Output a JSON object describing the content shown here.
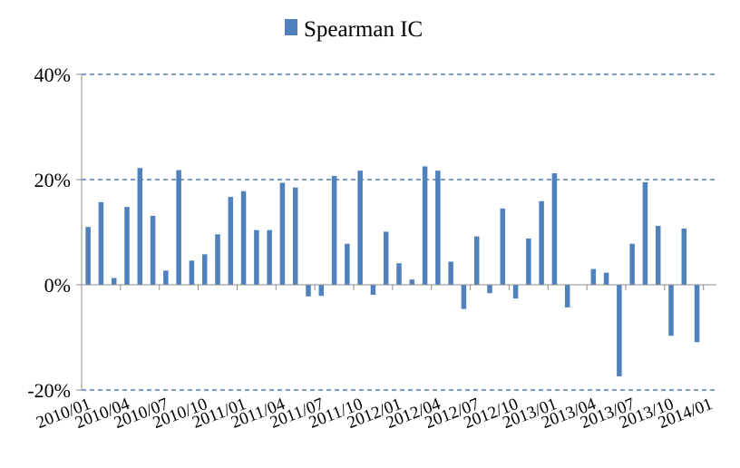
{
  "chart_data": {
    "type": "bar",
    "legend": {
      "label": "Spearman IC",
      "position": "top",
      "color": "#4f81bd"
    },
    "y_ticks": [
      "-20%",
      "0%",
      "20%",
      "40%"
    ],
    "ylim": [
      -0.2,
      0.4
    ],
    "grid": "horizontal-dashed",
    "x_tick_labels": [
      "2010/01",
      "2010/04",
      "2010/07",
      "2010/10",
      "2011/01",
      "2011/04",
      "2011/07",
      "2011/10",
      "2012/01",
      "2012/04",
      "2012/07",
      "2012/10",
      "2013/01",
      "2013/04",
      "2013/07",
      "2013/10",
      "2014/01"
    ],
    "categories": [
      "2010/01",
      "2010/02",
      "2010/03",
      "2010/04",
      "2010/05",
      "2010/06",
      "2010/07",
      "2010/08",
      "2010/09",
      "2010/10",
      "2010/11",
      "2010/12",
      "2011/01",
      "2011/02",
      "2011/03",
      "2011/04",
      "2011/05",
      "2011/06",
      "2011/07",
      "2011/08",
      "2011/09",
      "2011/10",
      "2011/11",
      "2011/12",
      "2012/01",
      "2012/02",
      "2012/03",
      "2012/04",
      "2012/05",
      "2012/06",
      "2012/07",
      "2012/08",
      "2012/09",
      "2012/10",
      "2012/11",
      "2012/12",
      "2013/01",
      "2013/02",
      "2013/03",
      "2013/04",
      "2013/05",
      "2013/06",
      "2013/07",
      "2013/08",
      "2013/09",
      "2013/10",
      "2013/11",
      "2013/12",
      "2014/01"
    ],
    "series": [
      {
        "name": "Spearman IC",
        "values": [
          0.11,
          0.157,
          0.013,
          0.148,
          0.222,
          0.131,
          0.027,
          0.218,
          0.046,
          0.058,
          0.096,
          0.167,
          0.178,
          0.104,
          0.104,
          0.194,
          0.185,
          -0.022,
          -0.021,
          0.207,
          0.078,
          0.217,
          -0.019,
          0.101,
          0.041,
          0.01,
          0.225,
          0.217,
          0.044,
          -0.046,
          0.092,
          -0.016,
          0.145,
          -0.026,
          0.088,
          0.159,
          0.212,
          -0.043,
          0.0,
          0.03,
          0.023,
          -0.174,
          0.078,
          0.195,
          0.112,
          -0.097,
          0.107,
          -0.109,
          0.0
        ]
      }
    ]
  }
}
